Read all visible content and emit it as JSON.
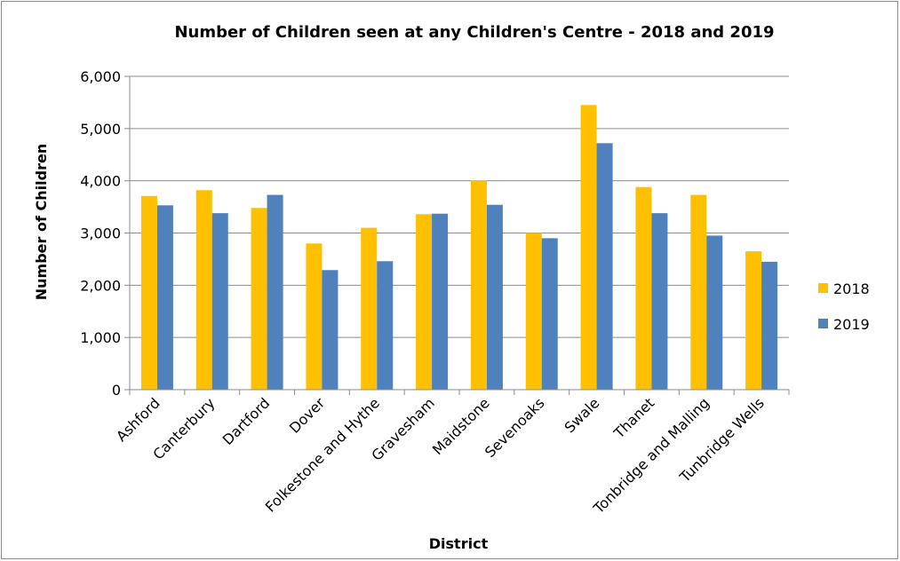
{
  "chart_data": {
    "type": "bar",
    "title": "Number of Children seen at any Children's Centre - 2018 and 2019",
    "xlabel": "District",
    "ylabel": "Number of Children",
    "ylim": [
      0,
      6000
    ],
    "yticks": [
      0,
      1000,
      2000,
      3000,
      4000,
      5000,
      6000
    ],
    "ytick_labels": [
      "0",
      "1,000",
      "2,000",
      "3,000",
      "4,000",
      "5,000",
      "6,000"
    ],
    "grid": true,
    "legend_position": "right",
    "categories": [
      "Ashford",
      "Canterbury",
      "Dartford",
      "Dover",
      "Folkestone and Hythe",
      "Gravesham",
      "Maidstone",
      "Sevenoaks",
      "Swale",
      "Thanet",
      "Tonbridge and Malling",
      "Tunbridge Wells"
    ],
    "series": [
      {
        "name": "2018",
        "color": "#FFC000",
        "values": [
          3710,
          3820,
          3480,
          2800,
          3100,
          3360,
          4010,
          3000,
          5450,
          3880,
          3730,
          2650
        ]
      },
      {
        "name": "2019",
        "color": "#4F81BD",
        "values": [
          3530,
          3380,
          3730,
          2290,
          2460,
          3370,
          3540,
          2900,
          4720,
          3380,
          2950,
          2450
        ]
      }
    ]
  }
}
